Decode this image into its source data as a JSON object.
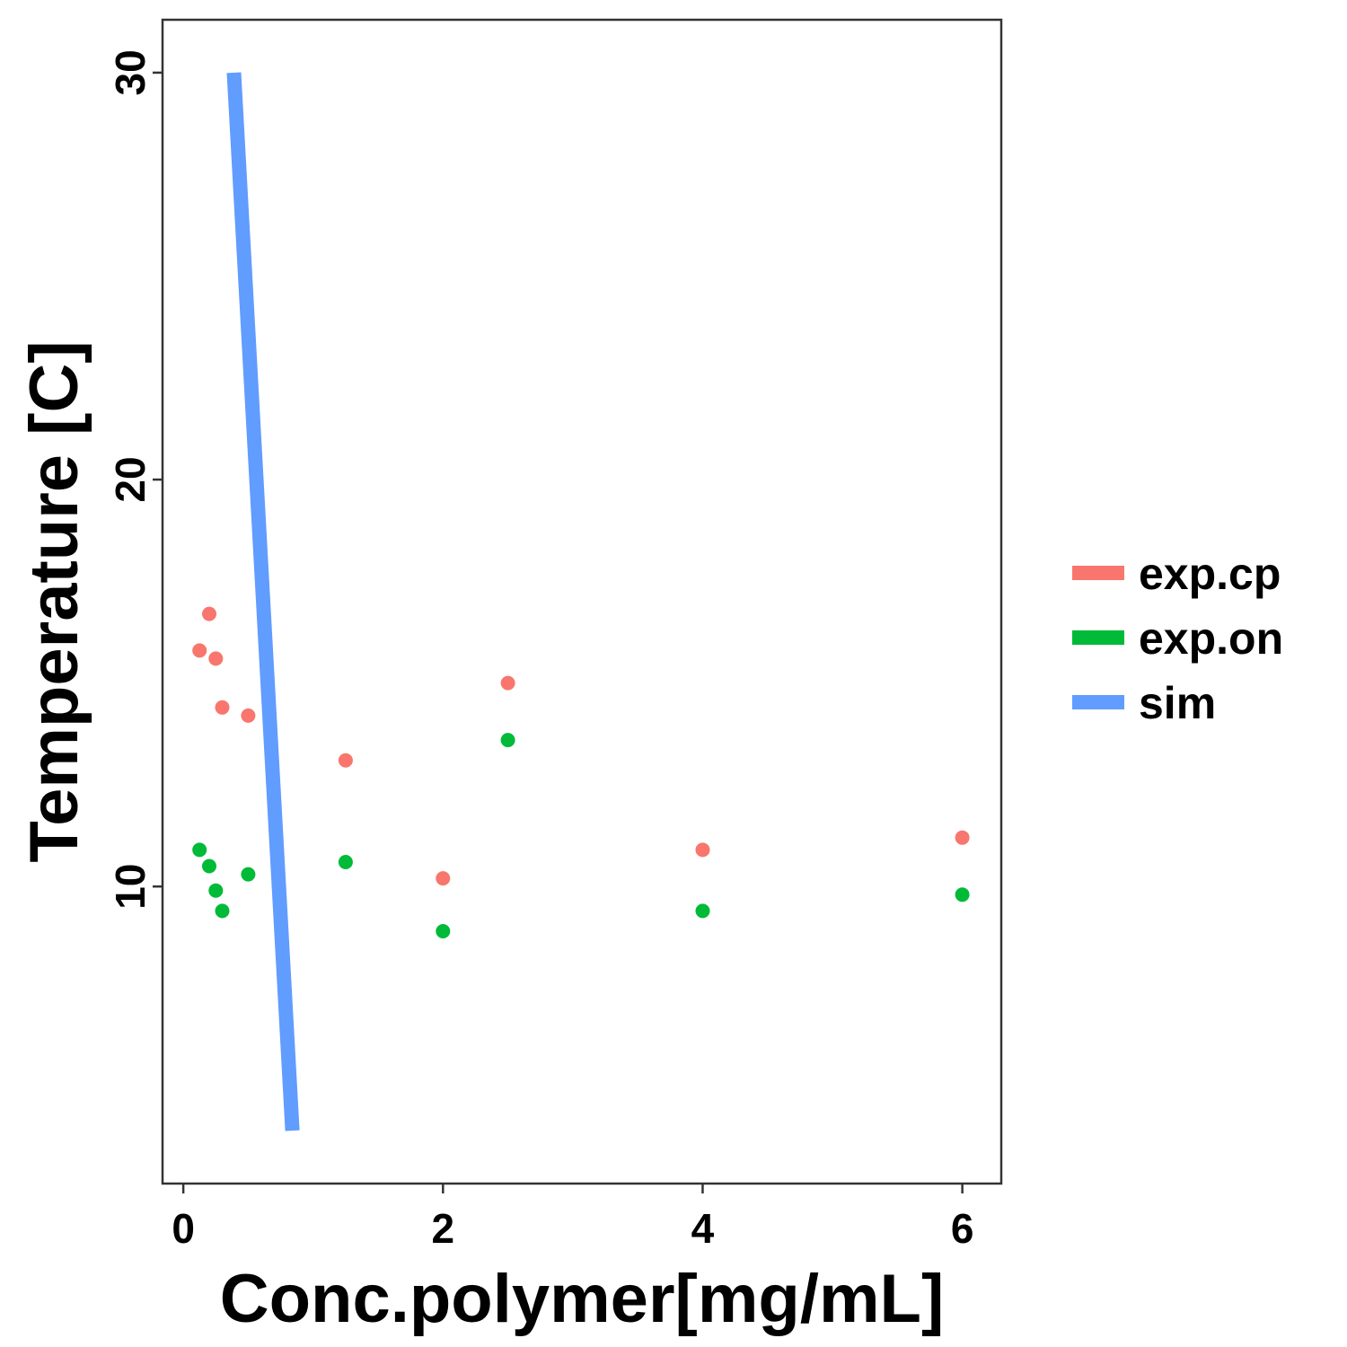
{
  "chart_data": {
    "type": "scatter",
    "xlabel": "Conc.polymer[mg/mL]",
    "ylabel": "Temperature [C]",
    "xlim": [
      -0.16,
      6.3
    ],
    "ylim": [
      2.7,
      31.3
    ],
    "x_ticks": [
      0,
      2,
      4,
      6
    ],
    "y_ticks": [
      10,
      20,
      30
    ],
    "x_tick_labels": [
      "0",
      "2",
      "4",
      "6"
    ],
    "y_tick_labels": [
      "10",
      "20",
      "30"
    ],
    "grid": false,
    "legend_position": "right",
    "series": [
      {
        "name": "exp.cp",
        "kind": "points",
        "color": "#F8766D",
        "points": [
          {
            "x": 0.125,
            "y": 15.8
          },
          {
            "x": 0.2,
            "y": 16.7
          },
          {
            "x": 0.25,
            "y": 15.6
          },
          {
            "x": 0.3,
            "y": 14.4
          },
          {
            "x": 0.5,
            "y": 14.2
          },
          {
            "x": 1.25,
            "y": 13.1
          },
          {
            "x": 2.0,
            "y": 10.2
          },
          {
            "x": 2.5,
            "y": 15.0
          },
          {
            "x": 4.0,
            "y": 10.9
          },
          {
            "x": 6.0,
            "y": 11.2
          }
        ]
      },
      {
        "name": "exp.on",
        "kind": "points",
        "color": "#00BA38",
        "points": [
          {
            "x": 0.125,
            "y": 10.9
          },
          {
            "x": 0.2,
            "y": 10.5
          },
          {
            "x": 0.25,
            "y": 9.9
          },
          {
            "x": 0.3,
            "y": 9.4
          },
          {
            "x": 0.5,
            "y": 10.3
          },
          {
            "x": 1.25,
            "y": 10.6
          },
          {
            "x": 2.0,
            "y": 8.9
          },
          {
            "x": 2.5,
            "y": 13.6
          },
          {
            "x": 4.0,
            "y": 9.4
          },
          {
            "x": 6.0,
            "y": 9.8
          }
        ]
      },
      {
        "name": "sim",
        "kind": "line",
        "color": "#619CFF",
        "points": [
          {
            "x": 0.39,
            "y": 30.0
          },
          {
            "x": 0.84,
            "y": 4.0
          }
        ]
      }
    ]
  }
}
